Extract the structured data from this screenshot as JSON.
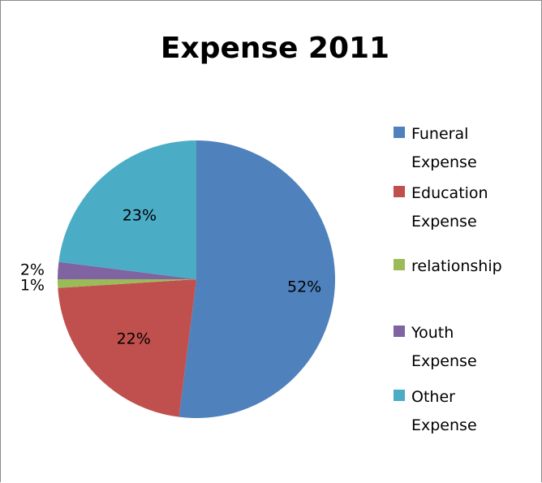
{
  "chart_data": {
    "type": "pie",
    "title": "Expense 2011",
    "categories": [
      "Funeral Expense",
      "Education Expense",
      "relationship",
      "Youth Expense",
      "Other Expense"
    ],
    "values": [
      52,
      22,
      1,
      2,
      23
    ],
    "labels": [
      "52%",
      "22%",
      "1%",
      "2%",
      "23%"
    ],
    "colors": [
      "#4f81bd",
      "#c0504d",
      "#9bbb59",
      "#8064a2",
      "#4bacc6"
    ],
    "legend": {
      "position": "right",
      "items": [
        [
          "Funeral",
          "Expense"
        ],
        [
          "Education",
          "Expense"
        ],
        [
          "relationship"
        ],
        [
          "Youth",
          "Expense"
        ],
        [
          "Other",
          "Expense"
        ]
      ]
    }
  }
}
